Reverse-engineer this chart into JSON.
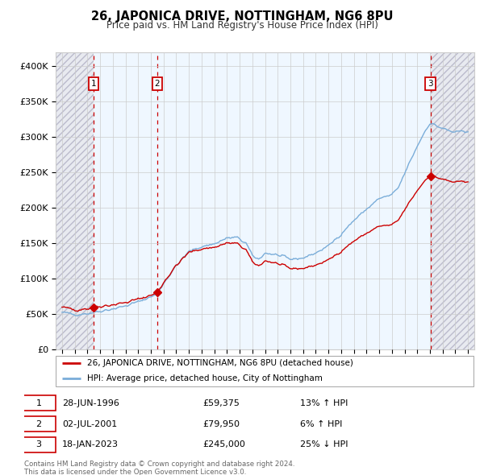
{
  "title": "26, JAPONICA DRIVE, NOTTINGHAM, NG6 8PU",
  "subtitle": "Price paid vs. HM Land Registry's House Price Index (HPI)",
  "legend_line1": "26, JAPONICA DRIVE, NOTTINGHAM, NG6 8PU (detached house)",
  "legend_line2": "HPI: Average price, detached house, City of Nottingham",
  "footer1": "Contains HM Land Registry data © Crown copyright and database right 2024.",
  "footer2": "This data is licensed under the Open Government Licence v3.0.",
  "transactions": [
    {
      "num": 1,
      "date": "28-JUN-1996",
      "price": 59375,
      "pct": "13%",
      "dir": "↑"
    },
    {
      "num": 2,
      "date": "02-JUL-2001",
      "price": 79950,
      "pct": "6%",
      "dir": "↑"
    },
    {
      "num": 3,
      "date": "18-JAN-2023",
      "price": 245000,
      "pct": "25%",
      "dir": "↓"
    }
  ],
  "sale_dates_decimal": [
    1996.49,
    2001.5,
    2023.04
  ],
  "sale_prices": [
    59375,
    79950,
    245000
  ],
  "ylim": [
    0,
    420000
  ],
  "yticks": [
    0,
    50000,
    100000,
    150000,
    200000,
    250000,
    300000,
    350000,
    400000
  ],
  "ytick_labels": [
    "£0",
    "£50K",
    "£100K",
    "£150K",
    "£200K",
    "£250K",
    "£300K",
    "£350K",
    "£400K"
  ],
  "xlim_start": 1993.5,
  "xlim_end": 2026.5,
  "xtick_years": [
    1994,
    1995,
    1996,
    1997,
    1998,
    1999,
    2000,
    2001,
    2002,
    2003,
    2004,
    2005,
    2006,
    2007,
    2008,
    2009,
    2010,
    2011,
    2012,
    2013,
    2014,
    2015,
    2016,
    2017,
    2018,
    2019,
    2020,
    2021,
    2022,
    2023,
    2024,
    2025,
    2026
  ],
  "hpi_color": "#7aadd9",
  "price_color": "#cc0000",
  "sale_marker_color": "#cc0000",
  "vline_color_sale": "#cc0000",
  "shade_color": "#ddeeff",
  "grid_color": "#cccccc",
  "background_color": "#ffffff",
  "label_box_color": "#cc0000",
  "outside_shade_color": "#e8eaf0",
  "hatch_color": "#bbbbcc"
}
